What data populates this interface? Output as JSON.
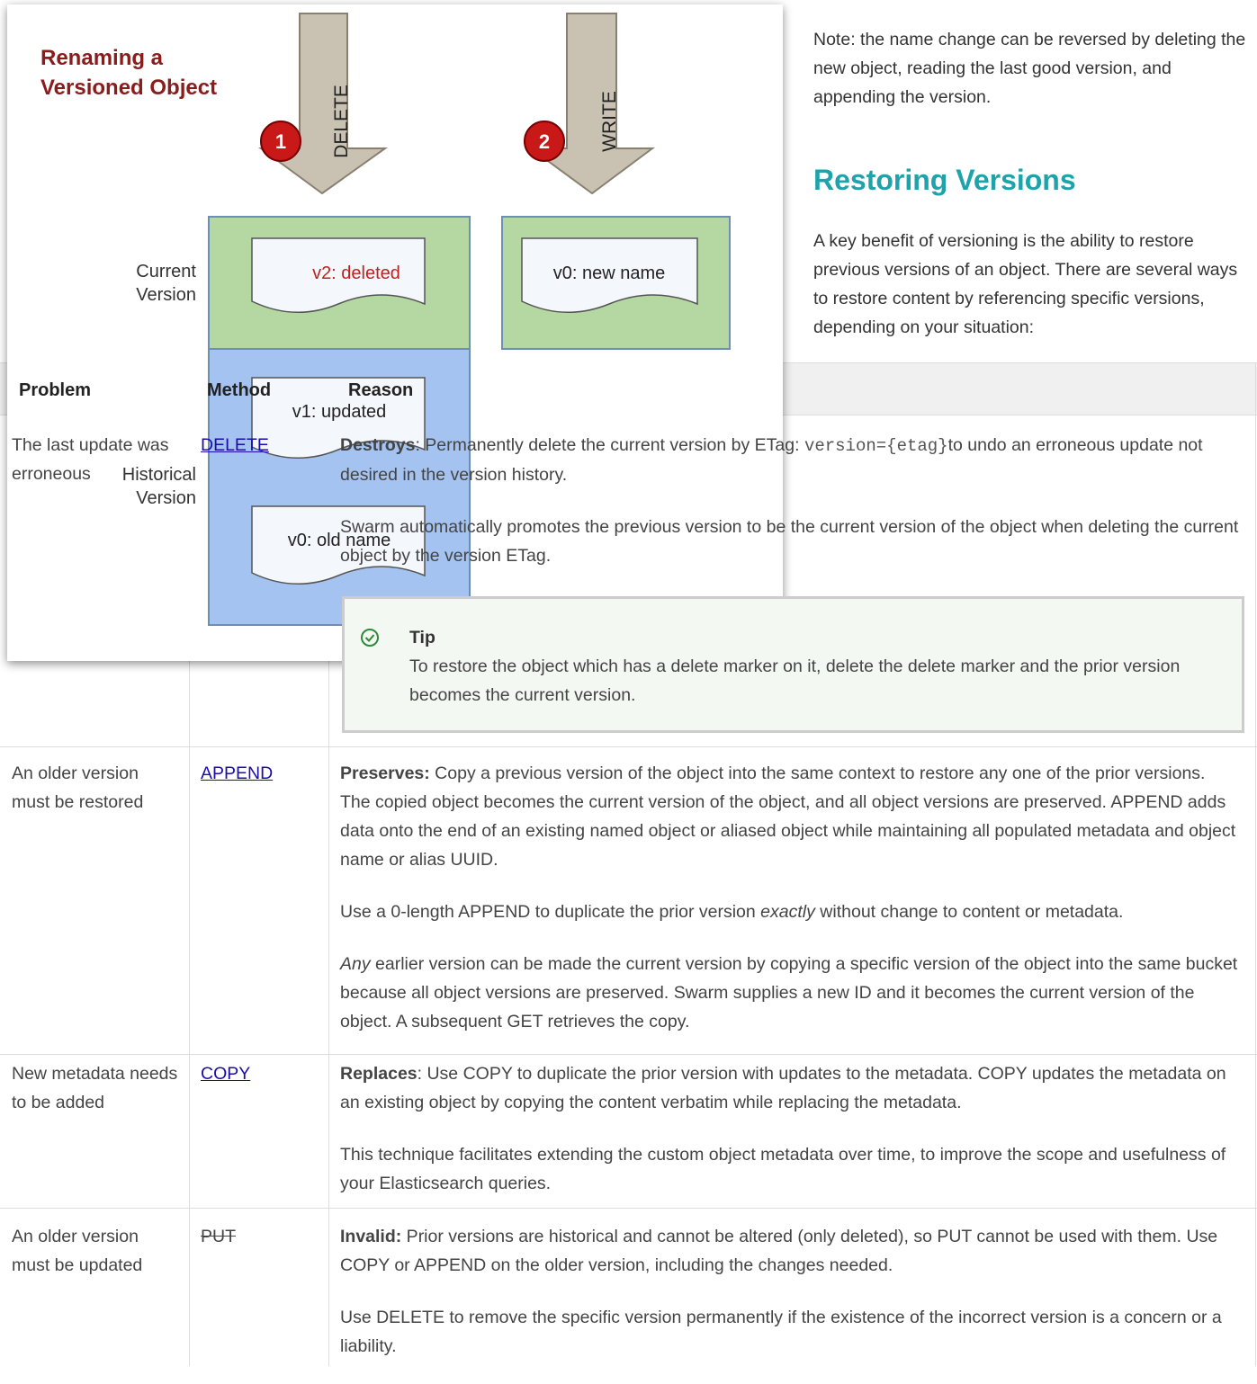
{
  "note": "Note: the name change can be reversed by deleting the new object, reading the last good version, and appending the version.",
  "heading": "Restoring Versions",
  "intro": "A key benefit of versioning is the ability to restore previous versions of an object. There are several ways to restore content by referencing specific versions, depending on your situation:",
  "table": {
    "headers": [
      "Problem",
      "Method",
      "Reason"
    ],
    "rows": [
      {
        "problem": "The last update was erroneous",
        "method": "DELETE",
        "reason": [
          [
            "Destroys",
            ": Permanently delete the current version by ETag: ",
            "version={etag}",
            "to undo an erroneous update not desired in the version history."
          ],
          [
            "Swarm automatically promotes the previous version to be the current version of the object when deleting the current object by the version ETag."
          ]
        ],
        "tip": {
          "title": "Tip",
          "text": "To restore the object which has a delete marker on it, delete the delete marker and the prior version becomes the current version."
        }
      },
      {
        "problem": "An older version must be restored",
        "method": "APPEND ",
        "reason": [
          [
            "Preserves:",
            " Copy a previous version of the object into the same context to restore any one of the prior versions. The copied object becomes the current version of the object, and all object versions are preserved. APPEND adds data onto the end of an existing named object or aliased object while maintaining all populated metadata and object name or alias UUID."
          ],
          [
            "Use a 0-length APPEND to duplicate the prior version ",
            "exactly",
            " without change to content or metadata."
          ],
          [
            "Any",
            " earlier version can be made the current version by copying a specific version of the object into the same bucket because all object versions are preserved. Swarm supplies a new ID and it becomes the current version of the object. A subsequent GET retrieves the copy."
          ]
        ]
      },
      {
        "problem": "New metadata needs to be added",
        "method": "COPY ",
        "reason": [
          [
            "Replaces",
            ": Use COPY to duplicate the prior version with updates to the metadata. COPY updates the metadata on an existing object by copying the content verbatim while replacing the metadata."
          ],
          [
            "This technique facilitates extending the custom object metadata over time, to improve the scope and usefulness of your Elasticsearch queries."
          ]
        ]
      },
      {
        "problem": "An older version must be updated",
        "method": "PUT",
        "reason": [
          [
            "Invalid:",
            " Prior versions are historical and cannot be altered (only deleted), so PUT cannot be used with them. Use COPY or APPEND on the older version, including the changes needed."
          ],
          [
            "Use DELETE to remove the specific version permanently if the existence of the incorrect version is a concern or a liability."
          ]
        ]
      }
    ]
  },
  "diagram": {
    "title": [
      "Renaming a",
      "Versioned Object"
    ],
    "arrows": [
      "DELETE",
      "WRITE"
    ],
    "steps": [
      "1",
      "2"
    ],
    "current_label": [
      "Current",
      "Version"
    ],
    "historical_label": [
      "Historical",
      "Version"
    ],
    "docs": [
      "v2: deleted",
      "v0: new name",
      "v1: updated",
      "v0: old name"
    ]
  }
}
